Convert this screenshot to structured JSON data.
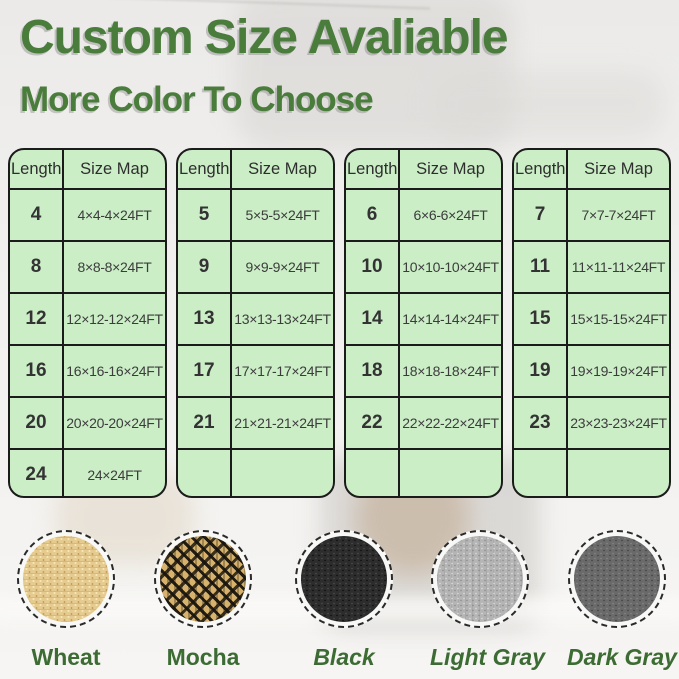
{
  "header": {
    "title": "Custom Size Avaliable",
    "subtitle": "More Color To Choose"
  },
  "size_tables": {
    "column_headers": [
      "Length",
      "Size Map"
    ],
    "tables": [
      {
        "rows": [
          [
            "4",
            "4×4-4×24FT"
          ],
          [
            "8",
            "8×8-8×24FT"
          ],
          [
            "12",
            "12×12-12×24FT"
          ],
          [
            "16",
            "16×16-16×24FT"
          ],
          [
            "20",
            "20×20-20×24FT"
          ],
          [
            "24",
            "24×24FT"
          ]
        ]
      },
      {
        "rows": [
          [
            "5",
            "5×5-5×24FT"
          ],
          [
            "9",
            "9×9-9×24FT"
          ],
          [
            "13",
            "13×13-13×24FT"
          ],
          [
            "17",
            "17×17-17×24FT"
          ],
          [
            "21",
            "21×21-21×24FT"
          ],
          [
            "",
            ""
          ]
        ]
      },
      {
        "rows": [
          [
            "6",
            "6×6-6×24FT"
          ],
          [
            "10",
            "10×10-10×24FT"
          ],
          [
            "14",
            "14×14-14×24FT"
          ],
          [
            "18",
            "18×18-18×24FT"
          ],
          [
            "22",
            "22×22-22×24FT"
          ],
          [
            "",
            ""
          ]
        ]
      },
      {
        "rows": [
          [
            "7",
            "7×7-7×24FT"
          ],
          [
            "11",
            "11×11-11×24FT"
          ],
          [
            "15",
            "15×15-15×24FT"
          ],
          [
            "19",
            "19×19-19×24FT"
          ],
          [
            "23",
            "23×23-23×24FT"
          ],
          [
            "",
            ""
          ]
        ]
      }
    ]
  },
  "color_swatches": [
    {
      "label": "Wheat",
      "base": "#e6cb90",
      "italic": false
    },
    {
      "label": "Mocha",
      "base": "#d6b26c",
      "italic": false
    },
    {
      "label": "Black",
      "base": "#2d2d2d",
      "italic": true
    },
    {
      "label": "Light Gray",
      "base": "#b5b5b5",
      "italic": true
    },
    {
      "label": "Dark Gray",
      "base": "#6a6a6a",
      "italic": true
    }
  ],
  "theme": {
    "heading_green": "#4a7c3c",
    "swatch_label_green": "#3c6b33",
    "table_bg_green": "#cbeec7",
    "table_border": "#1b1b1b"
  }
}
